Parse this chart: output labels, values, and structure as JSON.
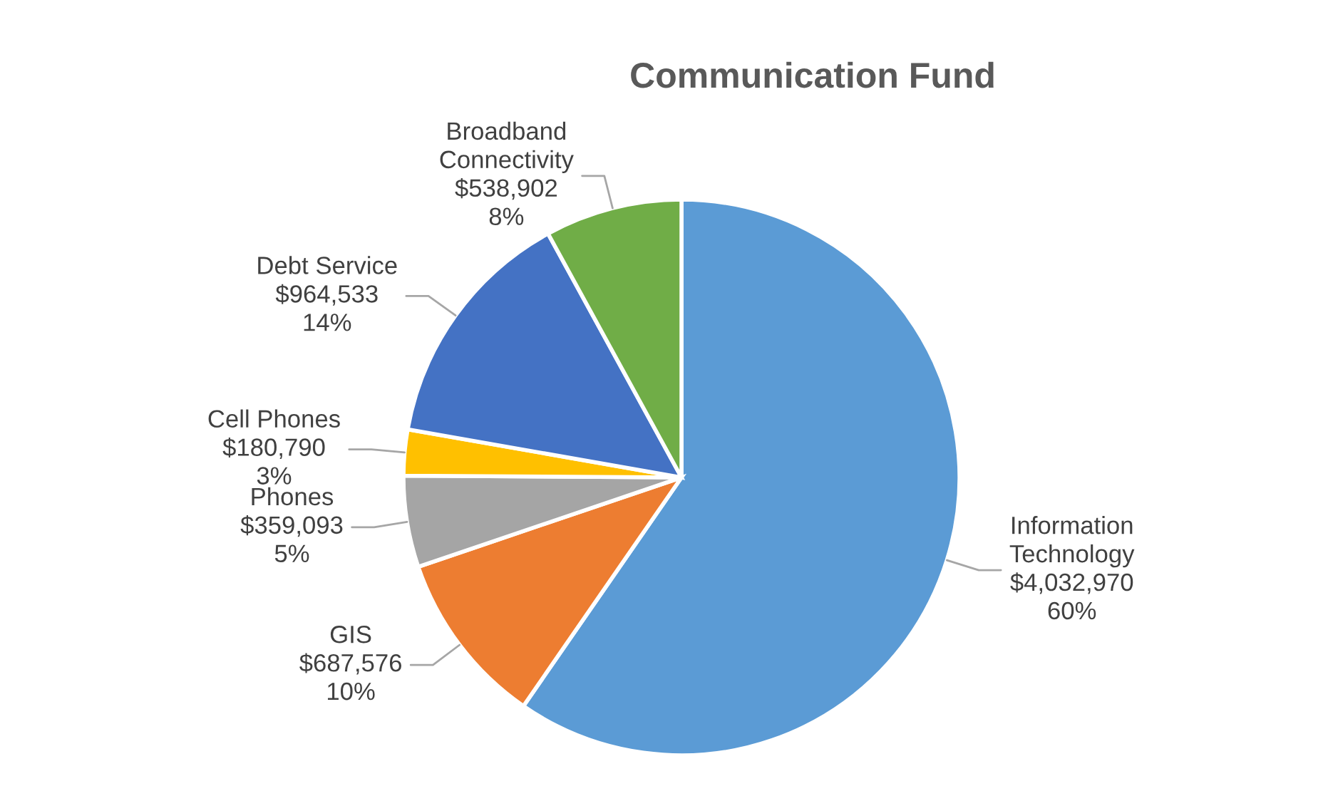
{
  "chart_data": {
    "type": "pie",
    "title": "Communication Fund",
    "categories": [
      "Information\nTechnology",
      "GIS",
      "Phones",
      "Cell Phones",
      "Debt Service",
      "Broadband\nConnectivity"
    ],
    "values": [
      4032970,
      687576,
      359093,
      180790,
      964533,
      538902
    ],
    "value_labels": [
      "$4,032,970\n60%",
      "$687,576\n10%",
      "$359,093\n5%",
      "$180,790\n3%",
      "$964,533\n14%",
      "$538,902\n8%"
    ],
    "colors": [
      "#5b9bd5",
      "#ed7d31",
      "#a5a5a5",
      "#ffc000",
      "#4472c4",
      "#70ad47"
    ]
  }
}
